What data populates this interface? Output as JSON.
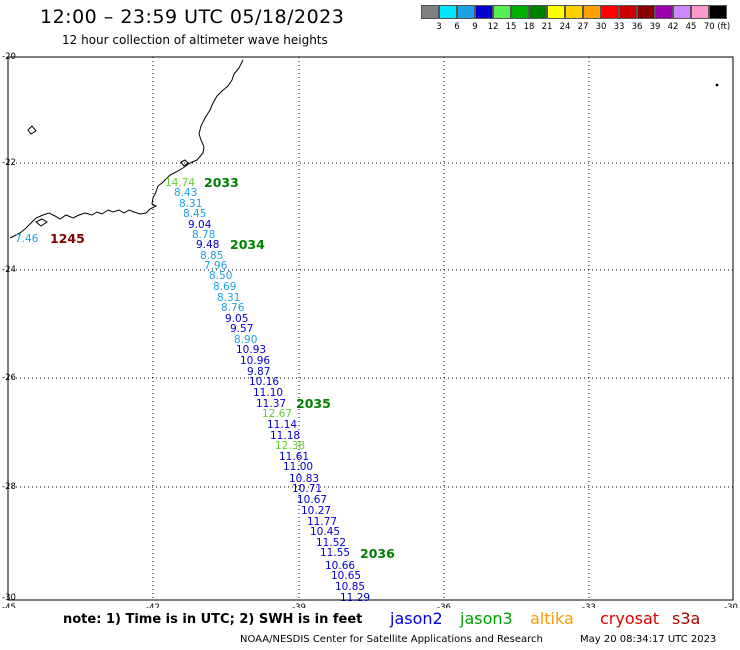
{
  "header": {
    "title": "12:00 – 23:59 UTC 05/18/2023",
    "subtitle": "12 hour collection of altimeter wave heights"
  },
  "scale": {
    "labels": [
      "3",
      "6",
      "9",
      "12",
      "15",
      "18",
      "21",
      "24",
      "27",
      "30",
      "33",
      "36",
      "39",
      "42",
      "45",
      "70 (ft)"
    ],
    "colors": [
      "#7f7f7f",
      "#00e5ff",
      "#1ea0e6",
      "#0000cd",
      "#55ee55",
      "#00b000",
      "#008000",
      "#ffff00",
      "#ffd000",
      "#ffa000",
      "#ff0000",
      "#cc0000",
      "#880000",
      "#9900aa",
      "#cc88ff",
      "#ff99cc",
      "#000000"
    ]
  },
  "map": {
    "lat_labels": [
      "-20",
      "-22",
      "-24",
      "-26",
      "-28",
      "-30"
    ],
    "lon_labels": [
      "-45",
      "-42",
      "-39",
      "-36",
      "-33",
      "-30"
    ],
    "passes": [
      {
        "label": "2033",
        "color": "#008000"
      },
      {
        "label": "1245",
        "color": "#800000"
      },
      {
        "label": "2034",
        "color": "#008000"
      },
      {
        "label": "2035",
        "color": "#008000"
      },
      {
        "label": "2036",
        "color": "#008000"
      }
    ],
    "observations": [
      {
        "text": "14.74",
        "color": "#66cc33"
      },
      {
        "text": "8.43",
        "color": "#1ea0e6"
      },
      {
        "text": "8.31",
        "color": "#1ea0e6"
      },
      {
        "text": "8.45",
        "color": "#1ea0e6"
      },
      {
        "text": "9.04",
        "color": "#0000cd"
      },
      {
        "text": "8.78",
        "color": "#1ea0e6"
      },
      {
        "text": "9.48",
        "color": "#0000cd"
      },
      {
        "text": "8.85",
        "color": "#1ea0e6"
      },
      {
        "text": "7.96",
        "color": "#1ea0e6"
      },
      {
        "text": "8.50",
        "color": "#1ea0e6"
      },
      {
        "text": "8.69",
        "color": "#1ea0e6"
      },
      {
        "text": "8.31",
        "color": "#1ea0e6"
      },
      {
        "text": "8.76",
        "color": "#1ea0e6"
      },
      {
        "text": "9.05",
        "color": "#0000cd"
      },
      {
        "text": "9.57",
        "color": "#0000cd"
      },
      {
        "text": "8.90",
        "color": "#1ea0e6"
      },
      {
        "text": "10.93",
        "color": "#0000cd"
      },
      {
        "text": "10.96",
        "color": "#0000cd"
      },
      {
        "text": "9.87",
        "color": "#0000cd"
      },
      {
        "text": "10.16",
        "color": "#0000cd"
      },
      {
        "text": "11.10",
        "color": "#0000cd"
      },
      {
        "text": "11.37",
        "color": "#0000cd"
      },
      {
        "text": "12.67",
        "color": "#66cc33"
      },
      {
        "text": "11.14",
        "color": "#0000cd"
      },
      {
        "text": "11.18",
        "color": "#0000cd"
      },
      {
        "text": "12.38",
        "color": "#66cc33"
      },
      {
        "text": "11.61",
        "color": "#0000cd"
      },
      {
        "text": "11.00",
        "color": "#0000cd"
      },
      {
        "text": "10.83",
        "color": "#0000cd"
      },
      {
        "text": "10.71",
        "color": "#0000cd"
      },
      {
        "text": "10.67",
        "color": "#0000cd"
      },
      {
        "text": "10.27",
        "color": "#0000cd"
      },
      {
        "text": "11.77",
        "color": "#0000cd"
      },
      {
        "text": "10.45",
        "color": "#0000cd"
      },
      {
        "text": "11.52",
        "color": "#0000cd"
      },
      {
        "text": "11.55",
        "color": "#0000cd"
      },
      {
        "text": "10.66",
        "color": "#0000cd"
      },
      {
        "text": "10.65",
        "color": "#0000cd"
      },
      {
        "text": "10.85",
        "color": "#0000cd"
      },
      {
        "text": "11.29",
        "color": "#0000cd"
      },
      {
        "text": "7.46",
        "color": "#1ea0e6"
      }
    ]
  },
  "footer": {
    "note": "note: 1) Time is in UTC; 2) SWH is in feet",
    "satellites": [
      {
        "name": "jason2",
        "color": "#0000dd"
      },
      {
        "name": "jason3",
        "color": "#00a000"
      },
      {
        "name": "altika",
        "color": "#ff9900"
      },
      {
        "name": "cryosat",
        "color": "#dd0000"
      },
      {
        "name": "s3a",
        "color": "#aa0000"
      }
    ],
    "credit": "NOAA/NESDIS Center for Satellite Applications and Research",
    "timestamp": "May 20 08:34:17 UTC 2023"
  }
}
